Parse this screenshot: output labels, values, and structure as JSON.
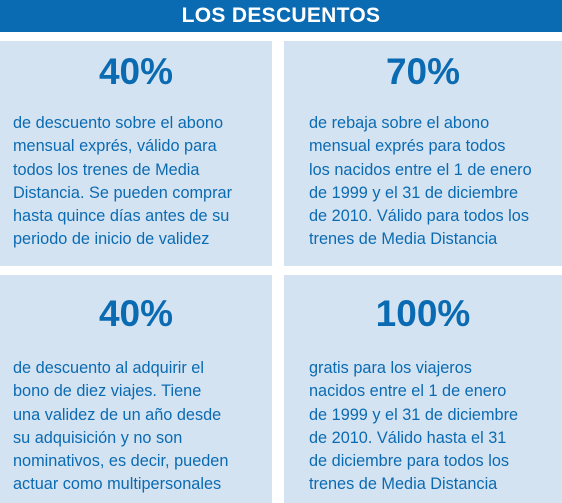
{
  "header": {
    "title": "LOS DESCUENTOS"
  },
  "colors": {
    "accent": "#0b6bb2",
    "card_background": "#d4e3f1"
  },
  "cards": [
    {
      "percentage": "40%",
      "description": "de descuento sobre el abono\nmensual exprés, válido para\ntodos los trenes de Media\nDistancia. Se pueden comprar\nhasta quince días antes de su\nperiodo de inicio de validez"
    },
    {
      "percentage": "70%",
      "description": "de rebaja sobre el abono\nmensual exprés para todos\nlos nacidos entre el 1 de enero\nde 1999 y el 31 de diciembre\nde 2010. Válido para todos los\ntrenes de Media Distancia"
    },
    {
      "percentage": "40%",
      "description": "de descuento al adquirir el\nbono de diez viajes. Tiene\nuna validez de un año desde\nsu adquisición y no son\nnominativos, es decir, pueden\nactuar como multipersonales"
    },
    {
      "percentage": "100%",
      "description": "gratis para los viajeros\nnacidos entre el 1 de enero\nde 1999 y el 31 de diciembre\nde 2010. Válido hasta el 31\nde diciembre para todos los\ntrenes de Media Distancia"
    }
  ]
}
